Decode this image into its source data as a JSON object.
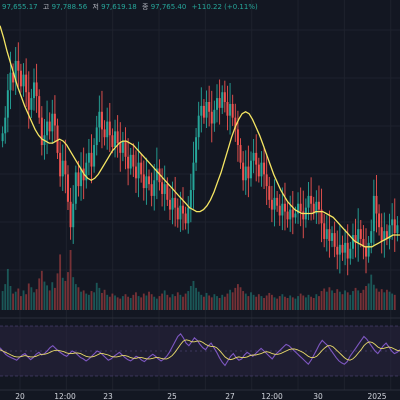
{
  "chart_data": {
    "type": "candlestick",
    "legend": {
      "open_value": "97,655.17",
      "high_label": "고",
      "high_value": "97,788.56",
      "low_label": "저",
      "low_value": "97,619.18",
      "close_label": "종",
      "close_value": "97,765.40",
      "change": "+110.22 (+0.11%)"
    },
    "x_ticks": [
      "20",
      "12:00",
      "23",
      "25",
      "27",
      "12:00",
      "30",
      "2025",
      "12:00"
    ],
    "colors": {
      "background": "#131722",
      "grid": "#1e222d",
      "up": "#26a69a",
      "down": "#ef5350",
      "moving_average": "#f5e663",
      "oscillator": "#7e57c2",
      "oscillator_signal": "#e8d96a",
      "oscillator_band": "#2a2540"
    },
    "series": [
      {
        "kind": "price",
        "values": [
          93.0,
          93.8,
          95.2,
          96.1,
          95.6,
          96.7,
          96.2,
          95.4,
          96.0,
          95.1,
          94.2,
          94.8,
          95.6,
          94.9,
          93.8,
          92.4,
          92.9,
          93.6,
          93.1,
          94.0,
          93.4,
          92.0,
          90.8,
          91.6,
          90.9,
          89.5,
          88.2,
          89.4,
          91.0,
          90.3,
          91.2,
          90.6,
          91.5,
          92.0,
          91.3,
          92.4,
          93.3,
          94.1,
          93.2,
          92.8,
          93.6,
          92.9,
          92.3,
          93.1,
          92.5,
          92.0,
          92.6,
          91.8,
          91.2,
          91.9,
          91.3,
          90.7,
          91.5,
          90.9,
          90.2,
          90.8,
          90.4,
          89.8,
          90.6,
          91.2,
          90.5,
          89.9,
          90.4,
          89.6,
          89.1,
          89.7,
          89.2,
          88.6,
          89.3,
          88.9,
          88.4,
          89.2,
          90.1,
          91.5,
          92.8,
          93.9,
          94.4,
          93.8,
          94.6,
          94.1,
          93.5,
          94.2,
          94.8,
          94.3,
          95.1,
          94.6,
          93.9,
          94.5,
          93.8,
          93.2,
          92.4,
          91.5,
          90.6,
          91.3,
          90.7,
          91.6,
          92.0,
          91.4,
          90.8,
          91.5,
          90.9,
          90.3,
          89.6,
          89.1,
          89.7,
          89.3,
          88.8,
          89.4,
          89.0,
          88.6,
          89.1,
          88.7,
          88.9,
          89.4,
          89.0,
          88.6,
          89.2,
          89.8,
          89.4,
          88.9,
          89.5,
          89.1,
          88.4,
          87.6,
          88.1,
          87.5,
          87.9,
          87.2,
          86.8,
          87.3,
          86.9,
          87.4,
          86.6,
          87.1,
          87.8,
          87.4,
          88.1,
          87.6,
          87.2,
          86.7,
          87.4,
          88.0,
          89.8,
          88.9,
          88.2,
          87.5,
          88.0,
          87.6,
          88.3,
          88.6,
          87.9,
          88.3
        ]
      },
      {
        "kind": "moving_average",
        "values": [
          98.5,
          97.9,
          97.2,
          96.6,
          96.0,
          95.4,
          94.9,
          94.4,
          94.0,
          93.6,
          93.2,
          92.9,
          92.7,
          92.6,
          92.5,
          92.5,
          92.6,
          92.7,
          92.6,
          92.4,
          92.1,
          91.8,
          91.5,
          91.2,
          90.9,
          90.7,
          90.6,
          90.7,
          90.9,
          91.2,
          91.5,
          91.8,
          92.1,
          92.3,
          92.5,
          92.6,
          92.6,
          92.5,
          92.4,
          92.2,
          92.0,
          91.8,
          91.6,
          91.4,
          91.2,
          91.0,
          90.8,
          90.6,
          90.4,
          90.2,
          90.0,
          89.8,
          89.6,
          89.4,
          89.2,
          89.1,
          89.0,
          89.0,
          89.1,
          89.3,
          89.6,
          90.0,
          90.5,
          91.0,
          91.6,
          92.2,
          92.8,
          93.3,
          93.7,
          94.0,
          94.1,
          94.0,
          93.7,
          93.3,
          92.9,
          92.4,
          91.9,
          91.4,
          90.9,
          90.5,
          90.1,
          89.8,
          89.5,
          89.3,
          89.1,
          89.0,
          88.9,
          88.9,
          88.9,
          88.9,
          89.0,
          89.0,
          89.0,
          88.9,
          88.8,
          88.7,
          88.5,
          88.3,
          88.1,
          87.9,
          87.7,
          87.5,
          87.4,
          87.3,
          87.2,
          87.2,
          87.2,
          87.3,
          87.4,
          87.5,
          87.6,
          87.7,
          87.8,
          87.8,
          87.8
        ]
      },
      {
        "kind": "volume",
        "values": [
          3.0,
          4.1,
          6.5,
          3.8,
          2.6,
          2.9,
          3.4,
          2.2,
          3.1,
          2.5,
          4.2,
          3.6,
          2.8,
          3.3,
          5.0,
          6.2,
          4.5,
          3.9,
          3.1,
          4.4,
          3.5,
          5.8,
          8.8,
          5.1,
          4.6,
          6.0,
          9.5,
          5.2,
          4.1,
          3.6,
          2.9,
          3.1,
          2.6,
          2.4,
          3.0,
          2.8,
          4.3,
          3.5,
          2.7,
          3.2,
          2.4,
          2.1,
          2.6,
          2.3,
          2.0,
          1.8,
          2.2,
          2.5,
          2.1,
          1.9,
          2.4,
          2.8,
          2.2,
          2.0,
          2.6,
          2.3,
          2.9,
          2.5,
          2.1,
          1.8,
          2.2,
          2.6,
          3.1,
          2.4,
          2.0,
          2.5,
          2.2,
          2.8,
          2.4,
          2.1,
          2.6,
          3.0,
          3.8,
          4.6,
          3.5,
          2.9,
          2.4,
          2.1,
          2.7,
          2.3,
          2.0,
          2.5,
          2.2,
          1.9,
          2.4,
          2.1,
          2.6,
          3.2,
          2.8,
          3.5,
          4.1,
          3.6,
          3.0,
          2.6,
          2.2,
          2.8,
          2.4,
          2.1,
          2.5,
          2.2,
          1.9,
          2.3,
          2.7,
          2.4,
          2.0,
          1.8,
          2.2,
          2.5,
          2.1,
          1.9,
          2.3,
          2.0,
          1.8,
          2.2,
          2.6,
          2.3,
          2.0,
          2.4,
          2.1,
          1.9,
          2.5,
          2.2,
          3.0,
          3.4,
          2.9,
          3.6,
          3.1,
          2.7,
          3.3,
          2.9,
          2.5,
          3.1,
          2.8,
          2.4,
          3.0,
          3.5,
          3.1,
          2.7,
          3.2,
          3.8,
          4.2,
          5.6,
          4.0,
          3.4,
          2.9,
          3.3,
          2.8,
          3.2,
          2.9,
          2.6,
          2.4
        ]
      },
      {
        "kind": "oscillator",
        "values": [
          55,
          50,
          45,
          42,
          40,
          38,
          36,
          40,
          44,
          46,
          41,
          37,
          40,
          45,
          48,
          44,
          46,
          50,
          55,
          58,
          54,
          50,
          47,
          44,
          42,
          46,
          50,
          48,
          44,
          40,
          38,
          35,
          38,
          42,
          46,
          50,
          48,
          44,
          40,
          36,
          38,
          42,
          45,
          48,
          44,
          40,
          37,
          35,
          38,
          42,
          40,
          36,
          34,
          38,
          42,
          45,
          42,
          38,
          35,
          38,
          42,
          48,
          56,
          64,
          72,
          76,
          70,
          62,
          58,
          64,
          70,
          66,
          60,
          55,
          52,
          58,
          62,
          55,
          48,
          40,
          33,
          28,
          35,
          42,
          46,
          40,
          36,
          38,
          44,
          48,
          45,
          42,
          46,
          50,
          54,
          50,
          46,
          42,
          38,
          44,
          48,
          52,
          56,
          60,
          58,
          54,
          50,
          46,
          42,
          38,
          34,
          30,
          36,
          44,
          52,
          60,
          66,
          62,
          58,
          52,
          46,
          40,
          35,
          32,
          30,
          34,
          42,
          48,
          54,
          60,
          66,
          72,
          68,
          62,
          56,
          50,
          46,
          52,
          58,
          62,
          56,
          50,
          46,
          48,
          52
        ]
      },
      {
        "kind": "oscillator_signal",
        "values": [
          52,
          50,
          48,
          46,
          44,
          42,
          41,
          41,
          42,
          43,
          42,
          41,
          41,
          42,
          44,
          45,
          45,
          46,
          48,
          50,
          51,
          51,
          50,
          49,
          47,
          46,
          46,
          47,
          47,
          46,
          44,
          42,
          41,
          41,
          42,
          44,
          46,
          46,
          45,
          44,
          42,
          41,
          41,
          42,
          43,
          43,
          42,
          40,
          39,
          39,
          40,
          40,
          39,
          38,
          38,
          39,
          40,
          40,
          39,
          38,
          38,
          40,
          43,
          48,
          54,
          60,
          65,
          67,
          66,
          64,
          64,
          65,
          65,
          63,
          60,
          58,
          57,
          57,
          55,
          51,
          46,
          41,
          38,
          37,
          38,
          40,
          41,
          40,
          40,
          41,
          43,
          44,
          44,
          45,
          46,
          48,
          49,
          48,
          46,
          45,
          45,
          46,
          48,
          50,
          52,
          53,
          53,
          52,
          50,
          48,
          45,
          42,
          40,
          40,
          42,
          46,
          51,
          55,
          58,
          58,
          56,
          52,
          48,
          44,
          40,
          37,
          36,
          38,
          42,
          47,
          52,
          58,
          62,
          64,
          63,
          60,
          56,
          54,
          54,
          55,
          56,
          55,
          53,
          51,
          50
        ]
      }
    ]
  }
}
